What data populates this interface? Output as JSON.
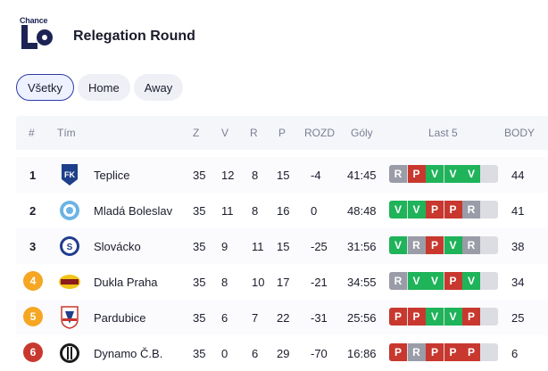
{
  "header": {
    "brand": "Chance",
    "title": "Relegation Round"
  },
  "filters": [
    {
      "label": "Všetky",
      "active": true
    },
    {
      "label": "Home",
      "active": false
    },
    {
      "label": "Away",
      "active": false
    }
  ],
  "columns": {
    "rank": "#",
    "team": "Tím",
    "z": "Z",
    "v": "V",
    "r": "R",
    "p": "P",
    "diff": "ROZD",
    "goals": "Góly",
    "last5": "Last 5",
    "points": "BODY"
  },
  "rows": [
    {
      "rank": "1",
      "badge": "",
      "team": "Teplice",
      "z": "35",
      "v": "12",
      "r": "8",
      "p": "15",
      "diff": "-4",
      "goals": "41:45",
      "form": [
        "R",
        "P",
        "V",
        "V",
        "V"
      ],
      "points": "44"
    },
    {
      "rank": "2",
      "badge": "",
      "team": "Mladá Boleslav",
      "z": "35",
      "v": "11",
      "r": "8",
      "p": "16",
      "diff": "0",
      "goals": "48:48",
      "form": [
        "V",
        "V",
        "P",
        "P",
        "R"
      ],
      "points": "41"
    },
    {
      "rank": "3",
      "badge": "",
      "team": "Slovácko",
      "z": "35",
      "v": "9",
      "r": "11",
      "p": "15",
      "diff": "-25",
      "goals": "31:56",
      "form": [
        "V",
        "R",
        "P",
        "V",
        "R"
      ],
      "points": "38"
    },
    {
      "rank": "4",
      "badge": "#f5a623",
      "team": "Dukla Praha",
      "z": "35",
      "v": "8",
      "r": "10",
      "p": "17",
      "diff": "-21",
      "goals": "34:55",
      "form": [
        "R",
        "V",
        "V",
        "P",
        "V"
      ],
      "points": "34"
    },
    {
      "rank": "5",
      "badge": "#f5a623",
      "team": "Pardubice",
      "z": "35",
      "v": "6",
      "r": "7",
      "p": "22",
      "diff": "-31",
      "goals": "25:56",
      "form": [
        "P",
        "P",
        "V",
        "V",
        "P"
      ],
      "points": "25"
    },
    {
      "rank": "6",
      "badge": "#c8382e",
      "team": "Dynamo Č.B.",
      "z": "35",
      "v": "0",
      "r": "6",
      "p": "29",
      "diff": "-70",
      "goals": "16:86",
      "form": [
        "P",
        "R",
        "P",
        "P",
        "P"
      ],
      "points": "6"
    }
  ],
  "crest_icons": [
    "teplice-crest-icon",
    "mlada-boleslav-crest-icon",
    "slovacko-crest-icon",
    "dukla-praha-crest-icon",
    "pardubice-crest-icon",
    "dynamo-cb-crest-icon"
  ]
}
